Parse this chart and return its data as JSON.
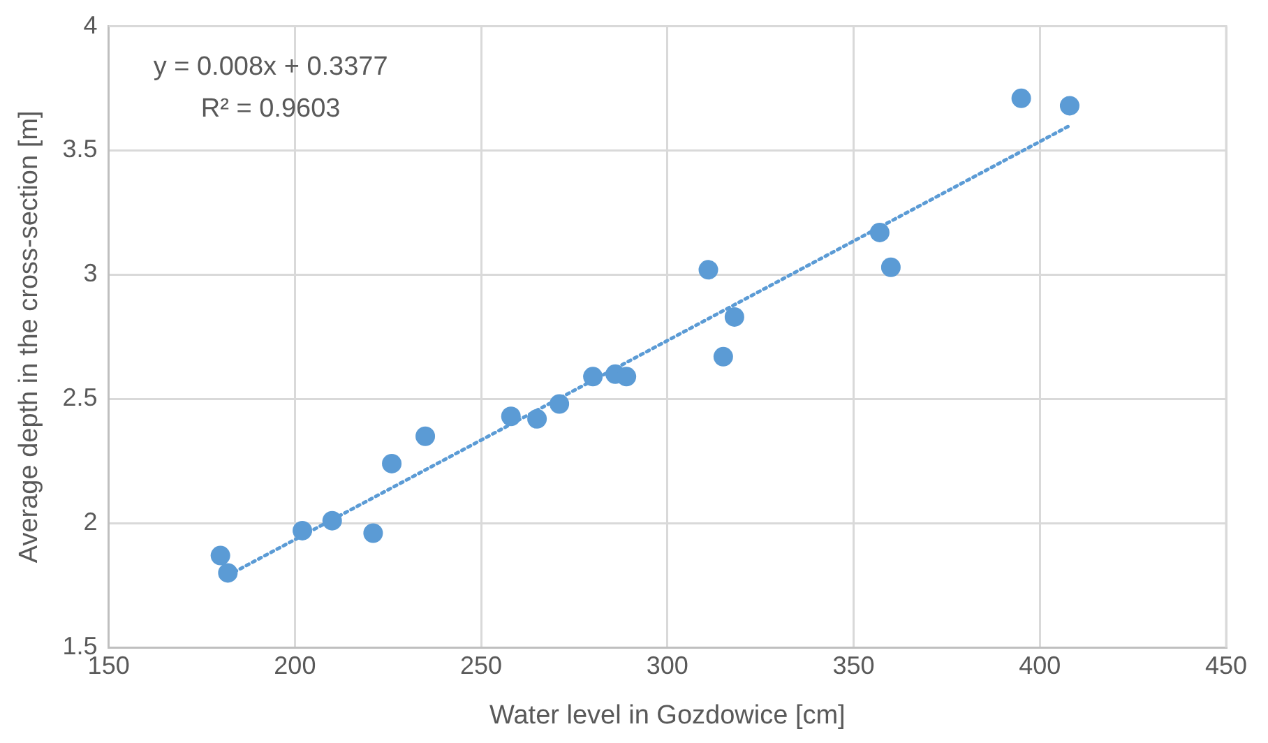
{
  "chart_data": {
    "type": "scatter",
    "xlabel": "Water level in Gozdowice [cm]",
    "ylabel": "Average depth in the cross-section [m]",
    "annotations": [
      "y = 0.008x + 0.3377",
      "R² = 0.9603"
    ],
    "series": [
      {
        "color": "#5b9bd5",
        "marker": "circle",
        "x": [
          180,
          182,
          202,
          210,
          221,
          226,
          235,
          258,
          265,
          271,
          280,
          286,
          289,
          311,
          315,
          318,
          357,
          360,
          395,
          408
        ],
        "values": [
          1.87,
          1.8,
          1.97,
          2.01,
          1.96,
          2.24,
          2.35,
          2.43,
          2.42,
          2.48,
          2.59,
          2.6,
          2.59,
          3.02,
          2.67,
          2.83,
          3.17,
          3.03,
          3.71,
          3.68
        ]
      },
      {
        "type": "line",
        "color": "#5b9bd5",
        "marker": "none",
        "line_style": "dotted",
        "x": [
          182,
          408
        ],
        "values": [
          1.79,
          3.6
        ]
      }
    ],
    "xlim": [
      150,
      450
    ],
    "xticks": [
      150,
      200,
      250,
      300,
      350,
      400,
      450
    ],
    "ylim": [
      1.5,
      4
    ],
    "yticks": [
      1.5,
      2,
      2.5,
      3,
      3.5,
      4
    ],
    "grid": true,
    "legend": false
  }
}
